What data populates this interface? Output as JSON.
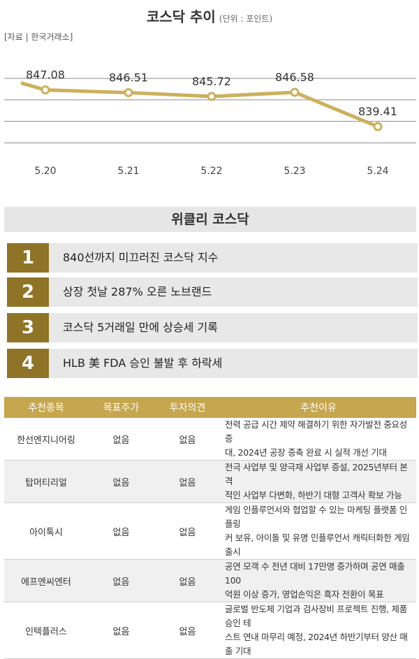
{
  "header": {
    "title": "코스닥 추이",
    "unit": "(단위 : 포인트)",
    "source": "[자료 | 한국거래소]"
  },
  "chart_data": {
    "type": "line",
    "title": "코스닥 추이",
    "categories": [
      "5.20",
      "5.21",
      "5.22",
      "5.23",
      "5.24"
    ],
    "series": [
      {
        "values": [
          847.08,
          846.51,
          845.72,
          846.58,
          839.41
        ],
        "labels": [
          "847.08",
          "846.51",
          "845.72",
          "846.58",
          "839.41"
        ]
      }
    ],
    "ylim": [
      833,
      852
    ],
    "grid": true,
    "line_color": "#cdb05c",
    "gridline_values": [
      849.5,
      845,
      840.5,
      836
    ]
  },
  "weekly": {
    "title": "위클리 코스닥",
    "items": [
      {
        "rank": "1",
        "text": "840선까지 미끄러진 코스닥 지수"
      },
      {
        "rank": "2",
        "text": "상장 첫날 287% 오른 노브랜드"
      },
      {
        "rank": "3",
        "text": "코스닥 5거래일 만에 상승세 기록"
      },
      {
        "rank": "4",
        "text": "HLB 美 FDA 승인 불발 후 하락세"
      }
    ]
  },
  "recommendations": {
    "headers": [
      "추천종목",
      "목표주가",
      "투자의견",
      "추천이유"
    ],
    "rows": [
      {
        "name": "한선엔지니어링",
        "target": "없음",
        "opinion": "없음",
        "reason_lines": [
          "전력 공급 시간 제약 해결하기 위한 자가발전 중요성 증",
          "대, 2024년 공장 증축 완료 시 실적 개선 기대"
        ]
      },
      {
        "name": "탑머티리얼",
        "target": "없음",
        "opinion": "없음",
        "reason_lines": [
          "전극 사업부 및 양극재 사업부 증설, 2025년부터 본격",
          "적인 사업부 다변화, 하반기 대형 고객사 확보 가능"
        ]
      },
      {
        "name": "아이톡시",
        "target": "없음",
        "opinion": "없음",
        "reason_lines": [
          "게임 인플루언서와 협업할 수 있는 마케팅 플랫폼 인플링",
          "커 보유, 아이돌 및 유명 인플루언서 캐릭터화한 게임 출시"
        ]
      },
      {
        "name": "에프엔씨엔터",
        "target": "없음",
        "opinion": "없음",
        "reason_lines": [
          "공연 모객 수 전년 대비 17만명 증가하며 공연 매출 100",
          "억원 이상 증가, 영업손익은 흑자 전환이 목표"
        ]
      },
      {
        "name": "인텍플러스",
        "target": "없음",
        "opinion": "없음",
        "reason_lines": [
          "글로벌 반도체 기업과 검사장비 프로젝트 진행, 제품 승인 테",
          "스트 연내 마무리 예정, 2024년 하반기부터 양산 매출 기대"
        ]
      }
    ]
  }
}
